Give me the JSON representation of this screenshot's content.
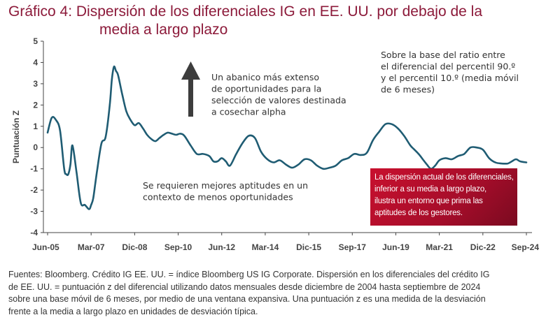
{
  "title": {
    "line1": "Gráfico 4: Dispersión de los diferenciales IG en EE. UU. por debajo de la",
    "line2": "media a largo plazo"
  },
  "annotations": {
    "upper_middle": [
      "Un abanico más extenso",
      "de oportunidades para la",
      "selección de valores destinada",
      "a cosechar alpha"
    ],
    "lower_middle": [
      "Se requieren mejores aptitudes en un",
      "contexto de menos oportunidades"
    ],
    "upper_right": [
      "Sobre la base del ratio entre",
      "el diferencial del percentil 90.º",
      "y el percentil 10.º (media móvil",
      "de 6 meses)"
    ],
    "callout": [
      "La dispersión actual de los diferenciales,",
      "inferior a su media a largo plazo,",
      "ilustra un entorno que prima las",
      "aptitudes de los gestores."
    ]
  },
  "footer": [
    "Fuentes: Bloomberg. Crédito IG EE. UU. = índice Bloomberg US IG Corporate. Dispersión en los diferenciales del crédito IG",
    "de EE. UU. = puntuación z del diferencial utilizando datos mensuales desde diciembre de 2004 hasta septiembre de 2024",
    "sobre una base móvil de 6 meses, por medio de una ventana expansiva. Una puntuación z es una medida de la desviación",
    "frente a la media a largo plazo en unidades de desviación típica."
  ],
  "colors": {
    "title": "#8c1a3a",
    "line": "#1f5c73",
    "arrow": "#3d3d3d",
    "callout": "#c8102e",
    "axis": "#444444"
  },
  "chart_data": {
    "type": "line",
    "xlabel": "",
    "ylabel": "Puntuación Z",
    "ylim": [
      -4,
      5
    ],
    "yticks": [
      "5",
      "4",
      "3",
      "2",
      "1",
      "0",
      "-1",
      "-2",
      "-3",
      "-4"
    ],
    "xlim": [
      "2005-06",
      "2024-09"
    ],
    "xticks": [
      "Jun-05",
      "Mar-07",
      "Dic-08",
      "Sep-10",
      "Jun-12",
      "Mar-14",
      "Dic-15",
      "Sep-17",
      "Jun-19",
      "Mar-21",
      "Dic-22",
      "Sep-24"
    ],
    "grid": false,
    "series": [
      {
        "x": [
          "2005-06",
          "2005-08",
          "2005-10",
          "2005-12",
          "2006-02",
          "2006-03",
          "2006-04",
          "2006-05",
          "2006-06",
          "2006-08",
          "2006-10",
          "2006-12",
          "2007-02",
          "2007-03",
          "2007-04",
          "2007-05",
          "2007-06",
          "2007-08",
          "2007-10",
          "2007-12",
          "2008-01",
          "2008-02",
          "2008-03",
          "2008-04",
          "2008-06",
          "2008-08",
          "2008-10",
          "2008-12",
          "2009-02",
          "2009-04",
          "2009-06",
          "2009-08",
          "2009-10",
          "2009-12",
          "2010-02",
          "2010-04",
          "2010-06",
          "2010-08",
          "2010-10",
          "2010-12",
          "2011-03",
          "2011-06",
          "2011-09",
          "2011-12",
          "2012-02",
          "2012-04",
          "2012-06",
          "2012-08",
          "2012-10",
          "2013-01",
          "2013-04",
          "2013-07",
          "2013-10",
          "2014-01",
          "2014-04",
          "2014-07",
          "2014-10",
          "2015-01",
          "2015-04",
          "2015-07",
          "2015-10",
          "2016-01",
          "2016-04",
          "2016-07",
          "2016-10",
          "2017-01",
          "2017-04",
          "2017-07",
          "2017-10",
          "2018-01",
          "2018-04",
          "2018-07",
          "2018-10",
          "2019-01",
          "2019-04",
          "2019-07",
          "2019-10",
          "2020-01",
          "2020-03",
          "2020-05",
          "2020-07",
          "2020-09",
          "2020-11",
          "2021-01",
          "2021-03",
          "2021-06",
          "2021-09",
          "2021-12",
          "2022-03",
          "2022-06",
          "2022-09",
          "2022-12",
          "2023-03",
          "2023-06",
          "2023-09",
          "2023-12",
          "2024-02",
          "2024-04",
          "2024-06",
          "2024-09"
        ],
        "values": [
          0.7,
          1.4,
          1.3,
          0.8,
          -1.0,
          -1.25,
          -1.25,
          -0.8,
          0.1,
          -1.2,
          -2.6,
          -2.7,
          -2.9,
          -2.7,
          -2.4,
          -1.7,
          -1.0,
          0.2,
          0.5,
          2.0,
          3.2,
          3.8,
          3.6,
          3.4,
          2.5,
          1.7,
          1.3,
          1.05,
          1.15,
          0.9,
          0.6,
          0.4,
          0.3,
          0.45,
          0.6,
          0.7,
          0.65,
          0.6,
          0.65,
          0.55,
          0.1,
          -0.3,
          -0.3,
          -0.4,
          -0.65,
          -0.65,
          -0.5,
          -0.65,
          -0.85,
          -0.3,
          0.2,
          0.55,
          0.45,
          -0.2,
          -0.55,
          -0.7,
          -0.6,
          -0.8,
          -0.95,
          -0.8,
          -0.55,
          -0.6,
          -0.85,
          -1.0,
          -0.95,
          -0.85,
          -0.6,
          -0.5,
          -0.3,
          -0.35,
          -0.25,
          0.35,
          0.75,
          1.1,
          1.1,
          0.9,
          0.55,
          0.1,
          -0.1,
          -0.3,
          -0.55,
          -0.8,
          -1.0,
          -0.85,
          -0.6,
          -0.5,
          -0.55,
          -0.4,
          -0.3,
          0.0,
          0.0,
          -0.1,
          -0.5,
          -0.7,
          -0.75,
          -0.75,
          -0.65,
          -0.55,
          -0.65,
          -0.7
        ]
      }
    ]
  }
}
